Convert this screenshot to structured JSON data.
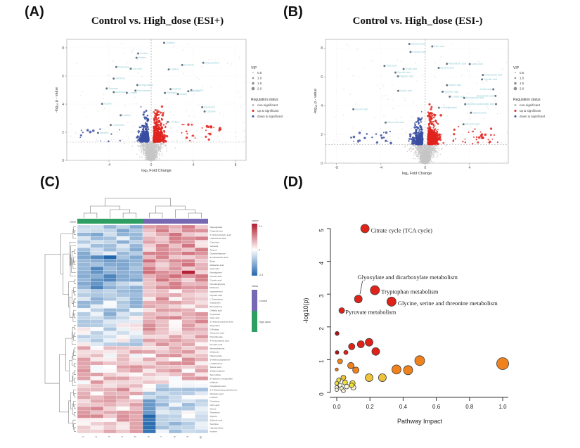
{
  "panel_labels": {
    "a": "(A)",
    "b": "(B)",
    "c": "(C)",
    "d": "(D)"
  },
  "chart_data": [
    {
      "id": "volcano-esi-pos",
      "type": "scatter",
      "subtype": "volcano",
      "title": "Control vs. High_dose (ESI+)",
      "xlabel": "log2 Fold Change",
      "ylabel": "-log10 p-value",
      "xlim": [
        -8,
        9
      ],
      "ylim": [
        0,
        8.6
      ],
      "x_ticks": [
        -4,
        0,
        4,
        8
      ],
      "y_ticks": [
        0,
        2,
        4,
        6,
        8
      ],
      "threshold_y": 1.3,
      "threshold_x": 0,
      "grid": true,
      "seed": 11,
      "clusters": {
        "background": {
          "n": 1900,
          "color": "#c6c6c6"
        },
        "up": {
          "n": 440,
          "color": "#e0231e"
        },
        "down": {
          "n": 310,
          "color": "#3a4fa2"
        },
        "outliers": {
          "n": 26,
          "color": "#5b6573",
          "label_color": "#8fccd6"
        }
      },
      "outlier_labels": [
        "Creatine",
        "Betaine",
        "Choline",
        "L-Carnitine",
        "Acetylcholine",
        "Hypoxanthine",
        "Xanthine",
        "Uric acid",
        "L-Leucine",
        "L-Valine",
        "L-Proline",
        "Serotonin",
        "Tyramine",
        "Adenine",
        "Guanine",
        "Cytosine",
        "Uridine",
        "Inosine",
        "Niacinamide",
        "Pyridoxine",
        "Thiamine",
        "Riboflavin",
        "Caffeine",
        "Cortisol",
        "Spermine",
        "Putrescine"
      ],
      "legend": {
        "vip_title": "VIP",
        "vip_items": [
          "0.5",
          "1.0",
          "1.5",
          "2.0"
        ],
        "status_title": "Regulation status",
        "status_items": [
          {
            "label": "non-significant",
            "color": "#b8b8b8"
          },
          {
            "label": "up & significant",
            "color": "#e0231e"
          },
          {
            "label": "down & significant",
            "color": "#3a4fa2"
          }
        ]
      }
    },
    {
      "id": "volcano-esi-neg",
      "type": "scatter",
      "subtype": "volcano",
      "title": "Control vs. High_dose (ESI-)",
      "xlabel": "log2 Fold Change",
      "ylabel": "-log10 p-value",
      "xlim": [
        -9,
        7.5
      ],
      "ylim": [
        0,
        8.6
      ],
      "x_ticks": [
        -8,
        -4,
        0,
        4
      ],
      "y_ticks": [
        0,
        2,
        4,
        6,
        8
      ],
      "threshold_y": 1.3,
      "threshold_x": 0,
      "grid": true,
      "seed": 77,
      "clusters": {
        "background": {
          "n": 1900,
          "color": "#c6c6c6"
        },
        "up": {
          "n": 520,
          "color": "#e0231e"
        },
        "down": {
          "n": 280,
          "color": "#3a4fa2"
        },
        "outliers": {
          "n": 26,
          "color": "#5b6573",
          "label_color": "#8fccd6"
        }
      },
      "outlier_labels": [
        "Citric acid",
        "Succinic acid",
        "Fumaric acid",
        "L-Malic acid",
        "Lactic acid",
        "Pyruvic acid",
        "Oxaloacetic acid",
        "a-Ketoglutarate",
        "Glyceric acid",
        "Glycolic acid",
        "Oxalic acid",
        "Hippuric acid",
        "Benzoic acid",
        "Palmitic acid",
        "Stearic acid",
        "Oleic acid",
        "Linoleic acid",
        "Arachidonic acid",
        "Cholic acid",
        "Deoxycholic acid",
        "Taurocholic acid",
        "Glucuronic acid",
        "Gluconic acid",
        "Ascorbic acid",
        "Shikimic acid",
        "Quinic acid"
      ],
      "legend": {
        "vip_title": "VIP",
        "vip_items": [
          "0.5",
          "1.0",
          "1.5",
          "2.0"
        ],
        "status_title": "Regulation status",
        "status_items": [
          {
            "label": "non-significant",
            "color": "#b8b8b8"
          },
          {
            "label": "up & significant",
            "color": "#e0231e"
          },
          {
            "label": "down & significant",
            "color": "#3a4fa2"
          }
        ]
      }
    },
    {
      "id": "heatmap",
      "type": "heatmap",
      "seed": 5,
      "rows": [
        "Sarpogrelate",
        "Progesterone",
        "2-Hydroxybutyric acid",
        "Undecanoic acid",
        "Curcumin",
        "Geraniol",
        "Taurine",
        "Dexamethasone",
        "3-Indoleacetic acid",
        "Biotin",
        "Maleamic acid",
        "Quercetin",
        "Neostigmine",
        "Pyruvic acid",
        "Cysteic acid",
        "Dimethylglycine",
        "Melamine",
        "Isoproterenol",
        "Glycolic acid",
        "L-Tryptophan",
        "Imipramine",
        "Benzylamine",
        "D-Malic acid",
        "Tryptophol",
        "Oleic acid",
        "2-Hydroxycinnamic acid",
        "Thymidine",
        "D-Proline",
        "Citraconic acid",
        "Pantothenate",
        "4-Aminobutyric acid",
        "Fumaric acid",
        "Benzophenone",
        "Melatonin",
        "Niacinamide",
        "5-Methoxytryptamine",
        "L-Methionine",
        "Stearic acid",
        "Sulfamethazine",
        "Spermidine",
        "5-Hydroxy-L-tryptophan",
        "Indigotin",
        "Oxoglutaric acid",
        "2,4-Dihydroxyacetophenone",
        "Mandelic acid",
        "Luteolin",
        "Creatinine",
        "Citric acid",
        "Serine",
        "Threonine",
        "Glycine",
        "Salicylic acid",
        "Xanthine",
        "Hypoxanthine",
        "Inosine"
      ],
      "cols": [
        "1",
        "2",
        "3",
        "4",
        "5",
        "6",
        "7",
        "8",
        "9",
        "10"
      ],
      "class_bar": {
        "label": "class",
        "groups": [
          {
            "label": "High dose",
            "color": "#2f9e63",
            "col_start": 0,
            "col_end": 4
          },
          {
            "label": "Control",
            "color": "#7668b2",
            "col_start": 5,
            "col_end": 9
          }
        ]
      },
      "value_legend": {
        "title": "value",
        "max": "2.4",
        "mid": "0",
        "min": "-2.4"
      },
      "class_legend": {
        "title": "class",
        "items": [
          {
            "label": "Control",
            "color": "#7668b2"
          },
          {
            "label": "High dose",
            "color": "#2f9e63"
          }
        ]
      },
      "palette": {
        "pos": "#b2182b",
        "zero": "#ffffff",
        "neg": "#2166ac",
        "max_abs": 2.4
      }
    },
    {
      "id": "pathway-impact",
      "type": "scatter",
      "subtype": "bubble",
      "xlabel": "Pathway Impact",
      "ylabel": "-log10(p)",
      "xlim": [
        0,
        1.05
      ],
      "ylim": [
        0,
        5.2
      ],
      "x_ticks": [
        "0.0",
        "0.2",
        "0.4",
        "0.6",
        "0.8",
        "1.0"
      ],
      "y_ticks": [
        0,
        1,
        2,
        3,
        4,
        5
      ],
      "point_colors": {
        "red": "#e02319",
        "darkred": "#b01217",
        "orange": "#f0821e",
        "amber": "#eec33a",
        "yellow": "#f2e33c",
        "pale": "#f8f4d9"
      },
      "points": [
        [
          0.17,
          5.0,
          6,
          "red"
        ],
        [
          0.23,
          3.12,
          6.5,
          "red"
        ],
        [
          0.33,
          2.77,
          6.5,
          "red"
        ],
        [
          0.13,
          2.85,
          5.5,
          "red"
        ],
        [
          0.03,
          2.5,
          4,
          "red"
        ],
        [
          0.002,
          1.8,
          2.8,
          "darkred"
        ],
        [
          0.002,
          1.22,
          2.6,
          "darkred"
        ],
        [
          0.055,
          1.22,
          3,
          "red"
        ],
        [
          0.09,
          1.4,
          4.5,
          "red"
        ],
        [
          0.145,
          1.47,
          5,
          "red"
        ],
        [
          0.195,
          1.53,
          5.5,
          "red"
        ],
        [
          0.235,
          1.25,
          5.5,
          "red"
        ],
        [
          0.02,
          0.95,
          3.5,
          "orange"
        ],
        [
          0.0,
          0.7,
          2.2,
          "orange"
        ],
        [
          0.085,
          0.82,
          4.5,
          "orange"
        ],
        [
          0.115,
          0.68,
          4.5,
          "orange"
        ],
        [
          0.36,
          0.7,
          6.5,
          "orange"
        ],
        [
          0.43,
          0.68,
          6.5,
          "orange"
        ],
        [
          0.5,
          0.97,
          7,
          "orange"
        ],
        [
          1.0,
          0.88,
          8.5,
          "orange"
        ],
        [
          0.195,
          0.45,
          5.5,
          "amber"
        ],
        [
          0.275,
          0.45,
          5.5,
          "amber"
        ],
        [
          0.04,
          0.45,
          3.5,
          "amber"
        ],
        [
          0.012,
          0.38,
          3,
          "yellow"
        ],
        [
          0.05,
          0.3,
          3.5,
          "yellow"
        ],
        [
          0.095,
          0.28,
          3.8,
          "yellow"
        ],
        [
          0.09,
          0.22,
          3.2,
          "yellow"
        ],
        [
          0.0,
          0.28,
          2.8,
          "yellow"
        ],
        [
          0.06,
          0.18,
          3.4,
          "pale"
        ],
        [
          0.02,
          0.22,
          2.8,
          "pale"
        ],
        [
          0.0,
          0.15,
          2.6,
          "pale"
        ],
        [
          0.03,
          0.12,
          2.8,
          "pale"
        ],
        [
          0.1,
          0.15,
          3.6,
          "pale"
        ],
        [
          0.0,
          0.08,
          2.4,
          "pale"
        ],
        [
          0.04,
          0.05,
          2.8,
          "pale"
        ]
      ],
      "annotations": [
        {
          "text": "Citrate cycle (TCA cycle)",
          "tx": 0.205,
          "ty": 4.95
        },
        {
          "text": "Glyoxylate and dicarboxylate metabolism",
          "tx": 0.125,
          "ty": 3.52,
          "leader": {
            "x1": 0.155,
            "y1": 3.4,
            "x2": 0.14,
            "y2": 3.0
          }
        },
        {
          "text": "Tryptophan metabolism",
          "tx": 0.268,
          "ty": 3.08
        },
        {
          "text": "Glycine, serine and threonine metabolism",
          "tx": 0.368,
          "ty": 2.73
        },
        {
          "text": "Pyruvate metabolism",
          "tx": 0.052,
          "ty": 2.46
        }
      ]
    }
  ]
}
